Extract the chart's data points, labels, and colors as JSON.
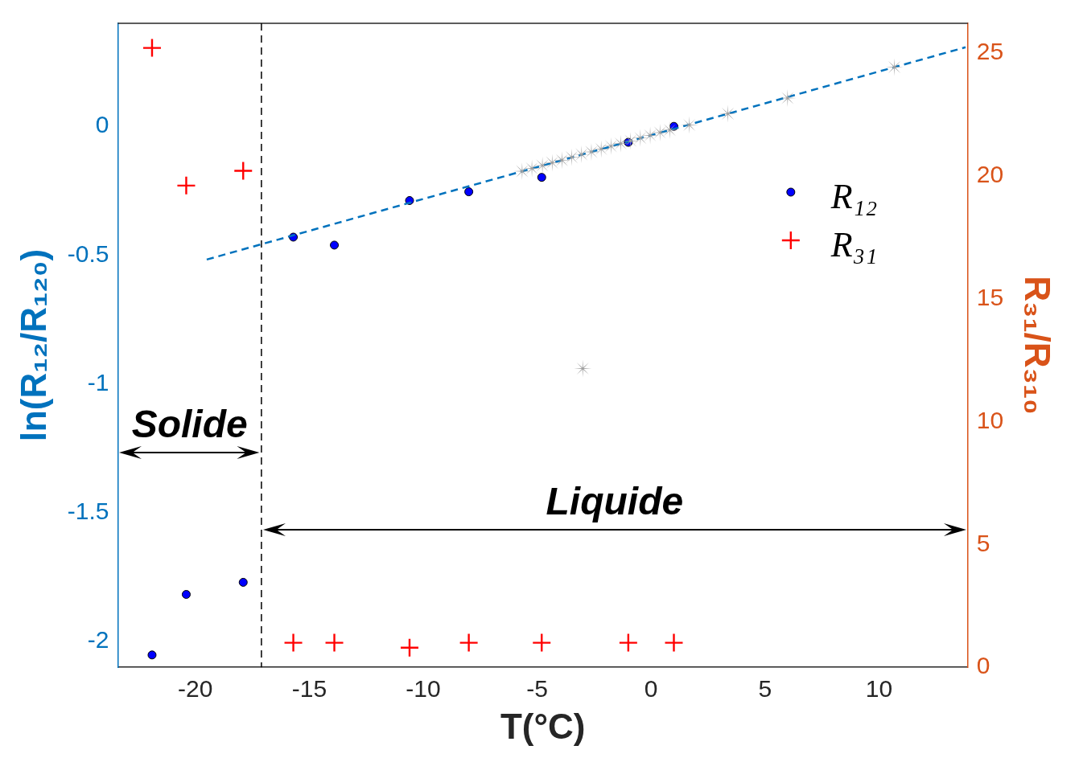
{
  "chart_data": {
    "type": "scatter",
    "xlabel": "T(°C)",
    "ylabel": "ln(R₁₂/R₁₂₀)",
    "y2label": "R₃₁/R₃₁₀",
    "xlim": [
      -23.4,
      13.9
    ],
    "xticks": [
      -20,
      -15,
      -10,
      -5,
      0,
      5,
      10
    ],
    "ylim": [
      -2.1,
      0.4
    ],
    "yticks": [
      -2,
      -1.5,
      -1,
      -0.5,
      0
    ],
    "y2lim": [
      0,
      26.2
    ],
    "y2ticks": [
      0,
      5,
      10,
      15,
      20,
      25
    ],
    "grid": false,
    "legend": "top right",
    "series": [
      {
        "color": "#a0a0a0",
        "marker": "star",
        "x": [
          -5.66,
          -5.23,
          -4.77,
          -4.34,
          -3.91,
          -3.48,
          -3.05,
          -2.62,
          -2.19,
          -1.76,
          -1.33,
          -0.9,
          -0.47,
          -0.04,
          0.39,
          0.82,
          1.68,
          3.37,
          5.99,
          10.68,
          -3.0
        ],
        "values": [
          -0.174,
          -0.163,
          -0.152,
          -0.141,
          -0.131,
          -0.12,
          -0.109,
          -0.099,
          -0.088,
          -0.077,
          -0.067,
          -0.056,
          -0.045,
          -0.035,
          -0.024,
          -0.014,
          0.005,
          0.049,
          0.11,
          0.23,
          -0.94
        ]
      },
      {
        "type": "line",
        "color": "#0072bd",
        "marker": "none",
        "line_style": "dashed",
        "x": [
          -19.5,
          13.8
        ],
        "values": [
          -0.517,
          0.307
        ]
      },
      {
        "name": "R₁₂",
        "color": "#0000ff",
        "marker": "circle",
        "x": [
          -21.9,
          -20.4,
          -17.9,
          -15.7,
          -13.9,
          -10.6,
          -8.0,
          -4.8,
          -1.0,
          1.0
        ],
        "values": [
          -2.052,
          -1.817,
          -1.77,
          -0.43,
          -0.461,
          -0.288,
          -0.254,
          -0.198,
          -0.062,
          0.0
        ]
      },
      {
        "name": "R₃₁",
        "color": "#ff0000",
        "marker": "cross",
        "axis": "y2",
        "x": [
          -21.9,
          -20.4,
          -17.9,
          -15.7,
          -13.9,
          -10.6,
          -8.0,
          -4.8,
          -1.0,
          1.0
        ],
        "values": [
          25.2,
          19.6,
          20.2,
          1.0,
          1.0,
          0.8,
          1.0,
          1.0,
          1.0,
          1.0
        ]
      }
    ],
    "ref_lines": [
      {
        "axis": "x",
        "value": -17.1,
        "color": "#000000",
        "line_style": "dashed"
      }
    ],
    "annotations": [
      "Solide",
      "Liquide"
    ]
  }
}
